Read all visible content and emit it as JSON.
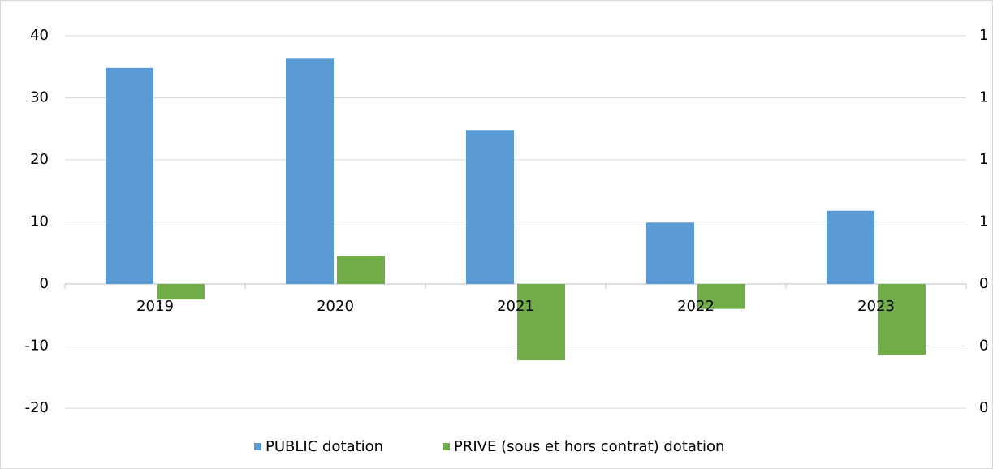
{
  "chart_data": {
    "type": "bar",
    "categories": [
      "2019",
      "2020",
      "2021",
      "2022",
      "2023"
    ],
    "series": [
      {
        "name": "PUBLIC dotation",
        "color": "#5b9bd5",
        "values": [
          34.8,
          36.3,
          24.8,
          9.9,
          11.8
        ]
      },
      {
        "name": "PRIVE (sous et hors contrat) dotation",
        "color": "#70ad47",
        "values": [
          -2.5,
          4.5,
          -12.3,
          -4.0,
          -11.4
        ]
      }
    ],
    "ylim": [
      -20,
      40
    ],
    "yticks": [
      -20,
      -10,
      0,
      10,
      20,
      30,
      40
    ],
    "y2lim": [
      0,
      1.2
    ],
    "y2ticks": [
      {
        "value": 0,
        "label": "0"
      },
      {
        "value": 0.2,
        "label": "0"
      },
      {
        "value": 0.4,
        "label": "0"
      },
      {
        "value": 0.6,
        "label": "1"
      },
      {
        "value": 0.8,
        "label": "1"
      },
      {
        "value": 1.0,
        "label": "1"
      },
      {
        "value": 1.2,
        "label": "1"
      }
    ],
    "grid": true,
    "legend": "bottom"
  }
}
